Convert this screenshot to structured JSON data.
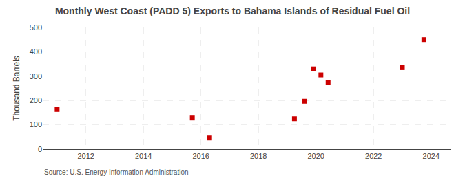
{
  "chart_data": {
    "type": "scatter",
    "title": "Monthly West Coast (PADD 5) Exports to Bahama Islands of Residual Fuel Oil",
    "ylabel": "Thousand Barrels",
    "annotations": [
      "Source: U.S. Energy Information Administration"
    ],
    "x": [
      2011.0,
      2015.7,
      2016.3,
      2019.25,
      2019.6,
      2019.92,
      2020.17,
      2020.42,
      2023.0,
      2023.75
    ],
    "values": [
      163,
      128,
      46,
      125,
      197,
      330,
      305,
      273,
      335,
      450
    ],
    "color": "#cc0000",
    "marker": "square",
    "xlim": [
      2010.5,
      2024.7
    ],
    "ylim": [
      0,
      500
    ],
    "xticks": [
      2012,
      2014,
      2016,
      2018,
      2020,
      2022,
      2024
    ],
    "yticks": [
      0,
      100,
      200,
      300,
      400,
      500
    ],
    "grid": true
  }
}
